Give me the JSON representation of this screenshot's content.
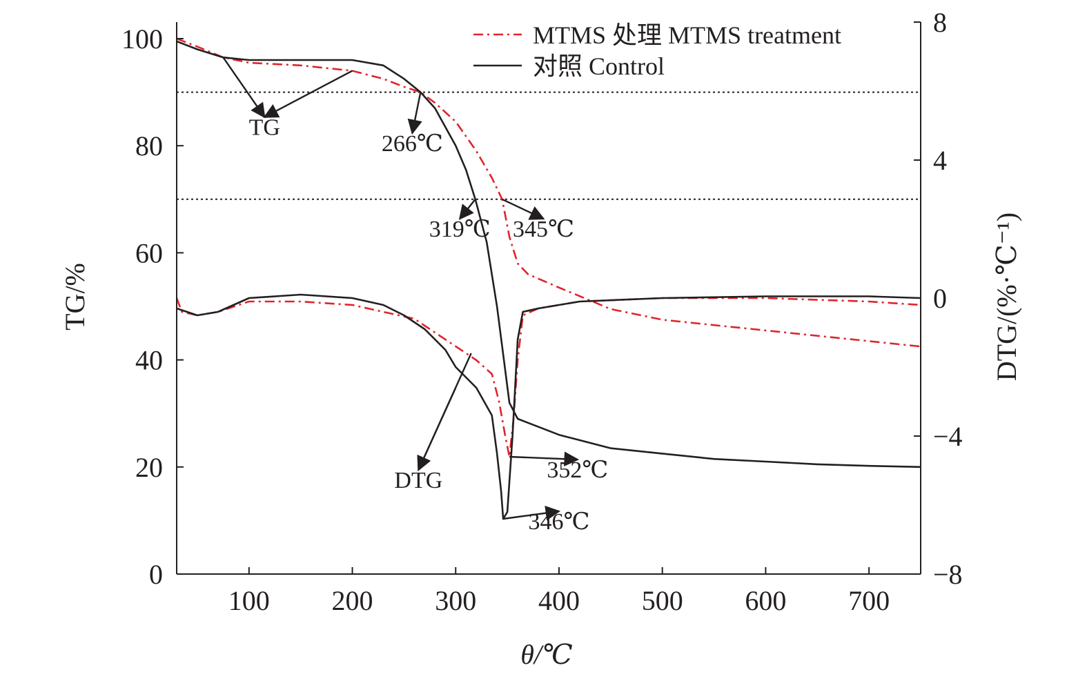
{
  "chart_data": {
    "type": "line",
    "title": "",
    "xlabel": "θ/℃",
    "ylabel": "TG/%",
    "ylabel_right": "DTG/(%·℃⁻¹)",
    "xlim": [
      30,
      750
    ],
    "ylim": [
      0,
      105
    ],
    "ylim_right": [
      -8,
      8
    ],
    "x_ticks": [
      100,
      200,
      300,
      400,
      500,
      600,
      700
    ],
    "y_ticks": [
      0,
      20,
      40,
      60,
      80,
      100
    ],
    "y_ticks_right": [
      -8,
      -4,
      0,
      4,
      8
    ],
    "x_tick_labels": [
      "100",
      "200",
      "300",
      "400",
      "500",
      "600",
      "700"
    ],
    "y_tick_labels": [
      "0",
      "20",
      "40",
      "60",
      "80",
      "100"
    ],
    "y_tick_labels_right": [
      "−8",
      "−4",
      "0",
      "4",
      "8"
    ],
    "reference_lines_tg": [
      90,
      70
    ],
    "legend_position": "top-right",
    "series": [
      {
        "name": "MTMS 处理 MTMS treatment",
        "color": "#e0242c",
        "style": "dash-dot",
        "axis": "left",
        "kind": "TG",
        "x": [
          30,
          50,
          75,
          100,
          150,
          200,
          230,
          250,
          266,
          280,
          300,
          320,
          335,
          345,
          352,
          360,
          370,
          400,
          450,
          500,
          550,
          600,
          650,
          700,
          750
        ],
        "y": [
          100,
          98.5,
          96.5,
          95.5,
          95,
          94,
          92.5,
          91,
          90,
          88,
          84.5,
          79,
          74,
          70,
          63,
          58,
          56,
          53.5,
          49.5,
          47.5,
          46.5,
          45.5,
          44.5,
          43.5,
          42.5
        ]
      },
      {
        "name": "对照 Control",
        "color": "#231f20",
        "style": "solid",
        "axis": "left",
        "kind": "TG",
        "x": [
          30,
          50,
          75,
          100,
          150,
          200,
          230,
          250,
          266,
          280,
          300,
          310,
          319,
          330,
          340,
          346,
          352,
          360,
          380,
          400,
          450,
          500,
          550,
          600,
          650,
          700,
          750
        ],
        "y": [
          99.5,
          98,
          96.5,
          96,
          96,
          96,
          95,
          92.5,
          90,
          87,
          80,
          75.5,
          70,
          62,
          50,
          41,
          32,
          29,
          27.5,
          26,
          23.5,
          22.5,
          21.5,
          21,
          20.5,
          20.2,
          20
        ]
      },
      {
        "name": "MTMS 处理 MTMS treatment",
        "color": "#e0242c",
        "style": "dash-dot",
        "axis": "right",
        "kind": "DTG",
        "x": [
          30,
          35,
          50,
          70,
          100,
          150,
          200,
          230,
          260,
          280,
          300,
          320,
          335,
          342,
          348,
          352,
          356,
          360,
          365,
          380,
          420,
          500,
          600,
          700,
          750
        ],
        "y": [
          0,
          -0.4,
          -0.5,
          -0.4,
          -0.1,
          -0.1,
          -0.2,
          -0.4,
          -0.6,
          -1.0,
          -1.4,
          -1.8,
          -2.2,
          -3.0,
          -4.0,
          -4.6,
          -3.5,
          -1.8,
          -0.5,
          -0.3,
          -0.1,
          0,
          0,
          -0.1,
          -0.2
        ]
      },
      {
        "name": "对照 Control",
        "color": "#231f20",
        "style": "solid",
        "axis": "right",
        "kind": "DTG",
        "x": [
          30,
          50,
          70,
          100,
          150,
          200,
          230,
          250,
          270,
          290,
          300,
          320,
          335,
          340,
          344,
          346,
          350,
          355,
          360,
          365,
          380,
          420,
          500,
          600,
          700,
          750
        ],
        "y": [
          -0.3,
          -0.5,
          -0.4,
          0,
          0.1,
          0,
          -0.2,
          -0.5,
          -0.9,
          -1.5,
          -2.0,
          -2.6,
          -3.4,
          -4.5,
          -5.6,
          -6.4,
          -6.2,
          -4.0,
          -1.2,
          -0.4,
          -0.3,
          -0.1,
          0,
          0.05,
          0.05,
          0
        ]
      }
    ],
    "annotations": [
      {
        "label": "TG",
        "targets": [
          [
            75,
            96.5
          ],
          [
            200,
            94
          ]
        ],
        "text_at": [
          115,
          82
        ]
      },
      {
        "label": "266℃",
        "targets": [
          [
            266,
            90
          ]
        ],
        "text_at": [
          258,
          79
        ]
      },
      {
        "label": "319℃",
        "targets": [
          [
            319,
            70
          ]
        ],
        "text_at": [
          304,
          63
        ]
      },
      {
        "label": "345℃",
        "targets": [
          [
            345,
            70
          ]
        ],
        "text_at": [
          385,
          63
        ]
      },
      {
        "label": "DTG",
        "targets": [
          [
            315,
            -1.6
          ],
          [
            300,
            -2.6
          ]
        ],
        "text_at": [
          264,
          -5.5
        ]
      },
      {
        "label": "352℃",
        "targets": [
          [
            352,
            -4.6
          ]
        ],
        "text_at": [
          418,
          -5.2
        ]
      },
      {
        "label": "346℃",
        "targets": [
          [
            346,
            -6.4
          ]
        ],
        "text_at": [
          400,
          -6.7
        ]
      }
    ]
  }
}
